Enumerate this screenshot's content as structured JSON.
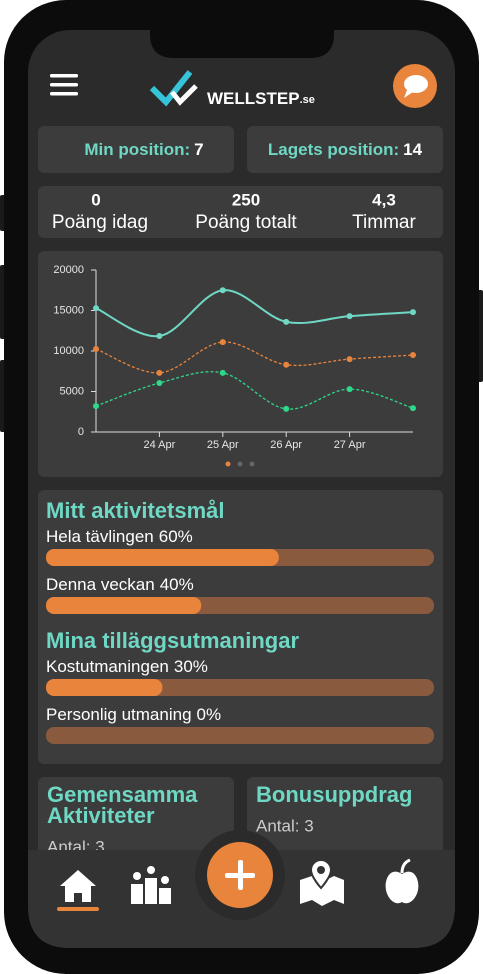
{
  "header": {
    "brand": "WELLSTEP",
    "brand_suffix": ".se"
  },
  "positions": [
    {
      "label": "Min position:",
      "value": 7
    },
    {
      "label": "Lagets position:",
      "value": 14
    }
  ],
  "stats": [
    {
      "value": 0,
      "label": "Poäng idag"
    },
    {
      "value": 250,
      "label": "Poäng totalt"
    },
    {
      "value": "4,3",
      "label": "Timmar"
    }
  ],
  "chart_data": {
    "type": "line",
    "categories": [
      null,
      "24 Apr",
      "25 Apr",
      "26 Apr",
      "27 Apr",
      null
    ],
    "ylim": [
      0,
      20000
    ],
    "yticks": [
      0,
      5000,
      10000,
      15000,
      20000
    ],
    "series": [
      {
        "color": "#6fd8c4",
        "dashed": false,
        "values": [
          15300,
          11850,
          17500,
          13600,
          14300,
          14800
        ]
      },
      {
        "color": "#e8843c",
        "dashed": true,
        "values": [
          10250,
          7300,
          11100,
          8300,
          9000,
          9500
        ]
      },
      {
        "color": "#2ed88a",
        "dashed": true,
        "values": [
          3200,
          6050,
          7300,
          2850,
          5300,
          2950
        ]
      }
    ]
  },
  "goals": [
    {
      "title": "Mitt aktivitetsmål",
      "items": [
        {
          "label": "Hela tävlingen",
          "value": 60,
          "value_label": "60%"
        },
        {
          "label": "Denna veckan",
          "value": 40,
          "value_label": "40%"
        }
      ]
    },
    {
      "title": "Mina tilläggsutmaningar",
      "items": [
        {
          "label": "Kostutmaningen",
          "value": 30,
          "value_label": "30%"
        },
        {
          "label": "Personlig utmaning",
          "value": 0,
          "value_label": "0%"
        }
      ]
    }
  ],
  "cards": [
    {
      "title": [
        "Gemensamma",
        "Aktiviteter"
      ],
      "text": "Antal: 3"
    },
    {
      "title": [
        "Bonusuppdrag"
      ],
      "text": "Antal: 3"
    }
  ]
}
